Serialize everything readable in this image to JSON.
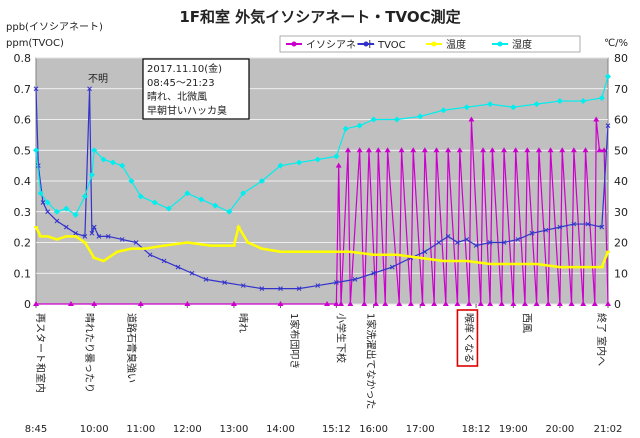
{
  "chart_data": {
    "type": "line",
    "title": "1F和室 外気イソシアネート・TVOC測定",
    "ylabel_left_1": "ppb(イソシアネート)",
    "ylabel_left_2": "ppm(TVOC)",
    "ylabel_right": "℃/%",
    "ylim_left": [
      0,
      0.8
    ],
    "ylim_right": [
      0,
      80
    ],
    "y_ticks_left": [
      "0",
      "0.1",
      "0.2",
      "0.3",
      "0.4",
      "0.5",
      "0.6",
      "0.7",
      "0.8"
    ],
    "y_ticks_right": [
      "0",
      "10",
      "20",
      "30",
      "40",
      "50",
      "60",
      "70",
      "80"
    ],
    "x_ticks": [
      "8:45",
      "10:00",
      "11:00",
      "12:00",
      "13:00",
      "14:00",
      "15:12",
      "16:00",
      "17:00",
      "18:12",
      "19:00",
      "20:00",
      "21:02"
    ],
    "x_tick_hours": [
      8.75,
      10,
      11,
      12,
      13,
      14,
      15.2,
      16,
      17,
      18.2,
      19,
      20,
      21.033
    ],
    "xlim": [
      8.75,
      21.033
    ],
    "legend": [
      "イソシアネート",
      "TVOC",
      "温度",
      "湿度"
    ],
    "legend_position": "top-right",
    "grid": true,
    "info_box": [
      "2017.11.10(金)",
      "08:45～21:23",
      "晴れ、北微風",
      "早朝甘いハッカ臭"
    ],
    "note_unknown": "不明",
    "event_labels": [
      {
        "text": "再スタート和室内",
        "t": 8.75
      },
      {
        "text": "晴れたり曇ったり",
        "t": 9.8
      },
      {
        "text": "道路石膏臭強い",
        "t": 10.7
      },
      {
        "text": "晴れ",
        "t": 13.1
      },
      {
        "text": "1家布団叩き",
        "t": 14.2
      },
      {
        "text": "小学生下校",
        "t": 15.2
      },
      {
        "text": "1家洗濯出てなかった",
        "t": 15.85
      },
      {
        "text": "喉痒くなる",
        "t": 17.95,
        "highlight": true
      },
      {
        "text": "西風",
        "t": 19.2
      },
      {
        "text": "終了 室内へ",
        "t": 20.8
      }
    ],
    "series": [
      {
        "name": "イソシアネート",
        "axis": "left",
        "color": "#cc00cc",
        "marker": "triangle",
        "t": [
          8.75,
          9.5,
          10,
          11,
          12,
          13,
          14,
          15,
          15.2,
          15.25,
          15.3,
          15.45,
          15.5,
          15.7,
          15.8,
          15.9,
          16.05,
          16.1,
          16.25,
          16.3,
          16.55,
          16.6,
          16.8,
          16.85,
          17.05,
          17.1,
          17.3,
          17.35,
          17.55,
          17.6,
          17.8,
          17.85,
          18.05,
          18.1,
          18.3,
          18.35,
          18.5,
          18.55,
          18.75,
          18.8,
          19,
          19.05,
          19.25,
          19.3,
          19.5,
          19.55,
          19.75,
          19.8,
          20,
          20.05,
          20.25,
          20.3,
          20.5,
          20.55,
          20.75,
          20.78,
          20.85,
          20.95,
          21.033
        ],
        "values": [
          0,
          0,
          0,
          0,
          0,
          0,
          0,
          0,
          0,
          0.45,
          0,
          0.5,
          0,
          0.5,
          0,
          0.5,
          0,
          0.5,
          0,
          0.5,
          0,
          0.5,
          0,
          0.5,
          0,
          0.5,
          0,
          0.5,
          0,
          0.5,
          0,
          0.5,
          0,
          0.6,
          0,
          0.5,
          0,
          0.5,
          0,
          0.5,
          0,
          0.5,
          0,
          0.5,
          0,
          0.5,
          0,
          0.5,
          0,
          0.5,
          0,
          0.5,
          0,
          0.5,
          0,
          0.6,
          0.5,
          0.5,
          0
        ]
      },
      {
        "name": "TVOC",
        "axis": "left",
        "color": "#3333cc",
        "marker": "x",
        "t": [
          8.75,
          8.8,
          8.9,
          9,
          9.2,
          9.4,
          9.6,
          9.8,
          9.9,
          9.95,
          10,
          10.1,
          10.3,
          10.6,
          10.9,
          11.2,
          11.5,
          11.8,
          12.1,
          12.4,
          12.8,
          13.2,
          13.6,
          14,
          14.4,
          14.8,
          15.2,
          15.6,
          16,
          16.4,
          16.8,
          17.1,
          17.4,
          17.6,
          17.8,
          18,
          18.2,
          18.5,
          18.8,
          19.1,
          19.4,
          19.7,
          20,
          20.3,
          20.6,
          20.9,
          21.033
        ],
        "values": [
          0.7,
          0.45,
          0.33,
          0.3,
          0.27,
          0.25,
          0.23,
          0.22,
          0.7,
          0.23,
          0.25,
          0.22,
          0.22,
          0.21,
          0.2,
          0.16,
          0.14,
          0.12,
          0.1,
          0.08,
          0.07,
          0.06,
          0.05,
          0.05,
          0.05,
          0.06,
          0.07,
          0.08,
          0.1,
          0.12,
          0.15,
          0.17,
          0.2,
          0.22,
          0.2,
          0.21,
          0.19,
          0.2,
          0.2,
          0.21,
          0.23,
          0.24,
          0.25,
          0.26,
          0.26,
          0.25,
          0.58
        ]
      },
      {
        "name": "温度",
        "axis": "right",
        "color": "#ffff00",
        "marker": "dash",
        "t": [
          8.75,
          8.85,
          9,
          9.2,
          9.4,
          9.6,
          9.8,
          10,
          10.2,
          10.5,
          10.8,
          11.1,
          11.5,
          12,
          12.5,
          13,
          13.1,
          13.3,
          13.6,
          14,
          14.5,
          15,
          15.5,
          16,
          16.5,
          17,
          17.5,
          18,
          18.5,
          19,
          19.5,
          20,
          20.5,
          20.9,
          21.033
        ],
        "values": [
          25,
          22,
          22,
          21,
          22,
          22,
          20,
          15,
          14,
          17,
          18,
          18,
          19,
          20,
          19,
          19,
          25,
          20,
          18,
          17,
          17,
          17,
          17,
          16,
          16,
          15,
          14,
          14,
          13,
          13,
          13,
          12,
          12,
          12,
          17
        ]
      },
      {
        "name": "湿度",
        "axis": "right",
        "color": "#00eeee",
        "marker": "diamond",
        "t": [
          8.75,
          8.85,
          9,
          9.2,
          9.4,
          9.6,
          9.8,
          9.95,
          10,
          10.2,
          10.4,
          10.6,
          10.8,
          11,
          11.3,
          11.6,
          12,
          12.3,
          12.6,
          12.9,
          13.2,
          13.6,
          14,
          14.4,
          14.8,
          15.2,
          15.4,
          15.7,
          16,
          16.5,
          17,
          17.5,
          18,
          18.5,
          19,
          19.5,
          20,
          20.5,
          20.9,
          21.033
        ],
        "values": [
          50,
          36,
          33,
          30,
          31,
          29,
          35,
          42,
          50,
          47,
          46,
          45,
          40,
          35,
          33,
          31,
          36,
          34,
          32,
          30,
          36,
          40,
          45,
          46,
          47,
          48,
          57,
          58,
          60,
          60,
          61,
          63,
          64,
          65,
          64,
          65,
          66,
          66,
          67,
          74
        ]
      }
    ]
  }
}
